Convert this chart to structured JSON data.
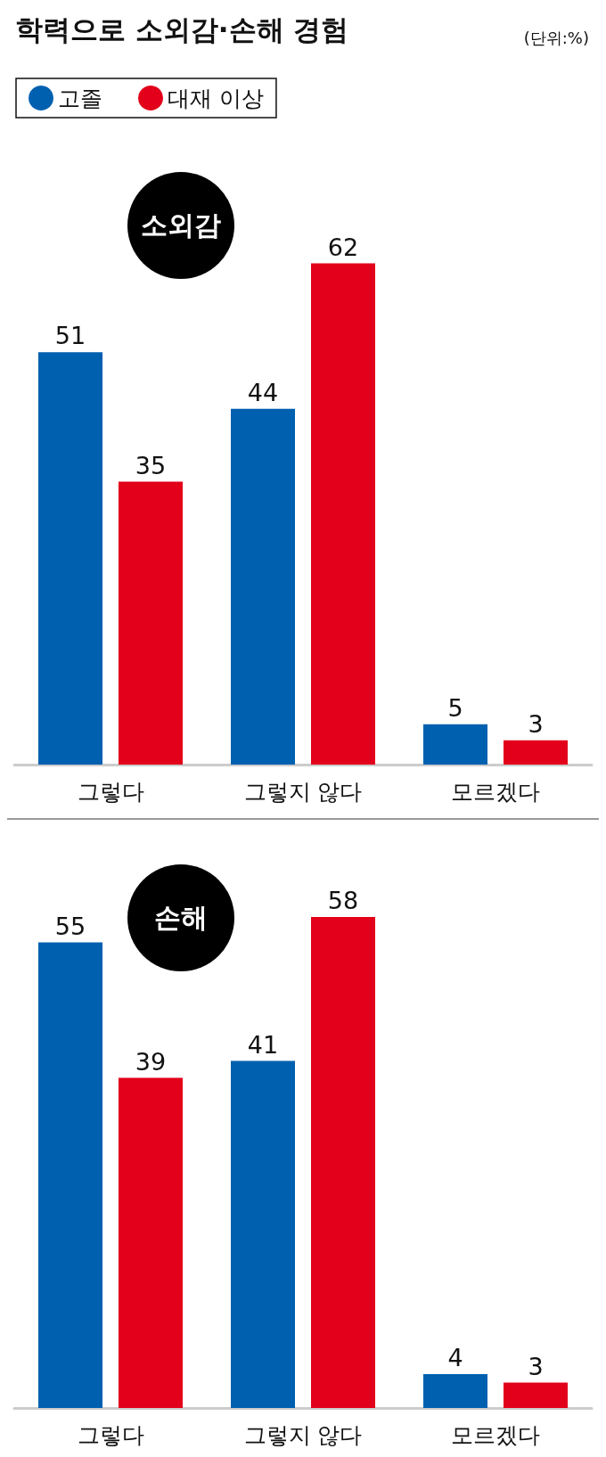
{
  "chart_data": [
    {
      "type": "bar",
      "title": "학력으로 소외감·손해 경험",
      "subtitle": "(단위:%)",
      "annotations": [
        "소외감"
      ],
      "categories": [
        "그렇다",
        "그렇지 않다",
        "모르겠다"
      ],
      "series": [
        {
          "name": "고졸",
          "color": "#0060b0",
          "values": [
            51,
            44,
            5
          ]
        },
        {
          "name": "대재 이상",
          "color": "#e2001a",
          "values": [
            35,
            62,
            3
          ]
        }
      ],
      "data_labels": true,
      "legend": "top left"
    },
    {
      "type": "bar",
      "annotations": [
        "손해"
      ],
      "categories": [
        "그렇다",
        "그렇지 않다",
        "모르겠다"
      ],
      "series": [
        {
          "color": "#0060b0",
          "values": [
            55,
            41,
            4
          ]
        },
        {
          "color": "#e2001a",
          "values": [
            39,
            58,
            3
          ]
        }
      ],
      "data_labels": true
    }
  ]
}
